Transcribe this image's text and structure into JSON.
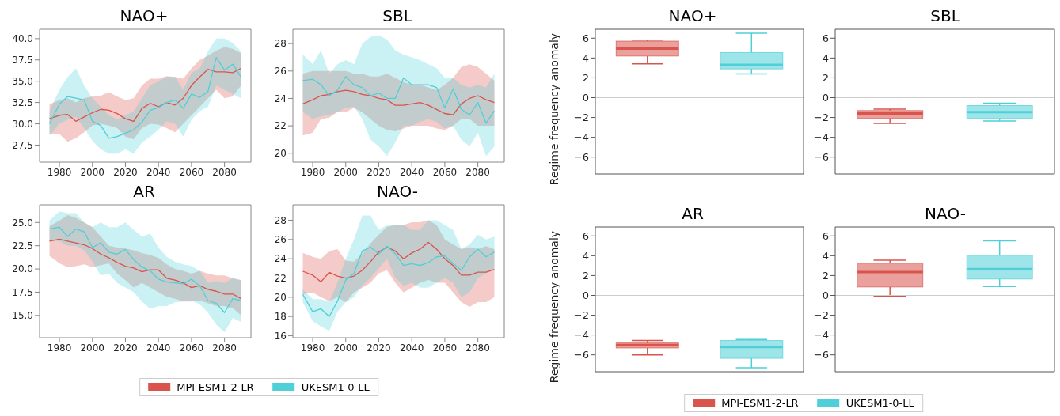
{
  "chart_data": [
    {
      "type": "line",
      "title": "NAO+",
      "x": [
        1974,
        1980,
        1985,
        1990,
        1995,
        2000,
        2005,
        2010,
        2015,
        2020,
        2025,
        2030,
        2035,
        2040,
        2045,
        2050,
        2055,
        2060,
        2065,
        2070,
        2075,
        2080,
        2085,
        2090
      ],
      "xlim": [
        1968,
        2096
      ],
      "xticks": [
        1980,
        2000,
        2020,
        2040,
        2060,
        2080
      ],
      "ylim": [
        25.5,
        41.1
      ],
      "yticks": [
        {
          "value": 27.5,
          "label": "27.5"
        },
        {
          "value": 30,
          "label": "30.0"
        },
        {
          "value": 32.5,
          "label": "32.5"
        },
        {
          "value": 35,
          "label": "35.0"
        },
        {
          "value": 37.5,
          "label": "37.5"
        },
        {
          "value": 40,
          "label": "40.0"
        }
      ],
      "series": [
        {
          "color": "#d9544d",
          "values": [
            30.6,
            31.0,
            31.1,
            30.3,
            30.8,
            31.3,
            31.7,
            31.6,
            31.2,
            30.6,
            30.3,
            31.8,
            32.4,
            32.0,
            32.5,
            32.2,
            33.0,
            34.5,
            35.5,
            36.4,
            36.1,
            36.1,
            36.0,
            36.5
          ],
          "lower": [
            28.8,
            28.8,
            27.9,
            28.3,
            29.0,
            29.8,
            30.0,
            29.8,
            29.5,
            28.5,
            28.2,
            29.5,
            30.0,
            29.9,
            29.5,
            29.0,
            30.0,
            31.0,
            32.0,
            33.0,
            34.0,
            33.0,
            33.2,
            34.5
          ],
          "upper": [
            32.3,
            32.8,
            33.0,
            32.5,
            33.0,
            33.2,
            33.3,
            33.7,
            33.2,
            32.8,
            33.0,
            34.5,
            35.3,
            35.3,
            35.6,
            35.5,
            35.3,
            36.5,
            37.5,
            38.0,
            38.6,
            39.0,
            38.8,
            38.3
          ]
        },
        {
          "color": "#4fcfd8",
          "values": [
            30.0,
            32.3,
            33.2,
            33.0,
            32.8,
            30.3,
            29.8,
            28.3,
            28.5,
            28.9,
            29.3,
            30.2,
            31.6,
            31.9,
            32.5,
            32.8,
            31.8,
            33.5,
            33.1,
            33.8,
            37.8,
            36.3,
            37.0,
            35.5
          ],
          "lower": [
            28.6,
            30.0,
            30.5,
            30.8,
            29.5,
            28.0,
            27.0,
            26.5,
            26.5,
            27.0,
            26.5,
            27.8,
            28.5,
            29.3,
            30.3,
            30.0,
            28.5,
            30.5,
            31.5,
            32.0,
            34.5,
            34.0,
            33.5,
            33.0
          ],
          "upper": [
            31.5,
            34.0,
            35.5,
            36.5,
            34.5,
            33.0,
            32.0,
            31.0,
            30.5,
            31.0,
            31.5,
            33.0,
            34.5,
            35.0,
            35.5,
            35.5,
            34.0,
            36.0,
            36.5,
            38.5,
            40.0,
            40.0,
            39.5,
            38.5
          ]
        }
      ]
    },
    {
      "type": "line",
      "title": "SBL",
      "x": [
        1974,
        1980,
        1985,
        1990,
        1995,
        2000,
        2005,
        2010,
        2015,
        2020,
        2025,
        2030,
        2035,
        2040,
        2045,
        2050,
        2055,
        2060,
        2065,
        2070,
        2075,
        2080,
        2085,
        2090
      ],
      "xlim": [
        1968,
        2096
      ],
      "xticks": [
        1980,
        2000,
        2020,
        2040,
        2060,
        2080
      ],
      "ylim": [
        19.35,
        29.05
      ],
      "yticks": [
        20,
        22,
        24,
        26,
        28
      ],
      "series": [
        {
          "color": "#d9544d",
          "values": [
            23.6,
            23.9,
            24.2,
            24.3,
            24.5,
            24.6,
            24.5,
            24.3,
            24.2,
            24.0,
            23.9,
            23.5,
            23.5,
            23.6,
            23.7,
            23.5,
            23.2,
            22.9,
            22.8,
            23.6,
            24.0,
            24.2,
            23.9,
            23.7
          ],
          "lower": [
            21.3,
            21.5,
            22.5,
            22.6,
            23.0,
            23.0,
            23.3,
            23.0,
            22.5,
            22.0,
            21.7,
            21.6,
            21.8,
            22.0,
            22.0,
            22.0,
            21.8,
            21.7,
            22.0,
            22.5,
            22.5,
            22.0,
            22.0,
            22.0
          ],
          "upper": [
            25.8,
            26.0,
            26.0,
            26.0,
            26.0,
            26.0,
            25.8,
            25.8,
            25.6,
            25.6,
            25.8,
            25.5,
            25.2,
            25.0,
            25.0,
            24.8,
            24.6,
            25.0,
            25.5,
            26.3,
            26.5,
            26.3,
            25.8,
            25.3
          ]
        },
        {
          "color": "#4fcfd8",
          "values": [
            25.3,
            25.4,
            25.0,
            24.2,
            24.6,
            25.6,
            25.0,
            24.8,
            24.2,
            24.4,
            24.0,
            24.0,
            25.5,
            25.0,
            25.0,
            25.0,
            24.8,
            23.3,
            24.7,
            23.2,
            22.8,
            23.7,
            22.2,
            23.1
          ],
          "lower": [
            23.0,
            22.5,
            22.7,
            22.8,
            23.0,
            23.3,
            23.4,
            22.5,
            21.0,
            20.5,
            19.8,
            20.8,
            22.0,
            22.0,
            22.3,
            22.5,
            22.3,
            21.8,
            22.0,
            21.0,
            20.5,
            21.5,
            19.8,
            20.5
          ],
          "upper": [
            27.2,
            26.5,
            27.5,
            25.8,
            26.5,
            26.8,
            26.5,
            28.0,
            28.5,
            28.6,
            28.3,
            27.5,
            27.2,
            27.0,
            26.8,
            26.5,
            26.2,
            25.5,
            25.5,
            25.0,
            24.8,
            25.0,
            24.8,
            25.8
          ]
        }
      ]
    },
    {
      "type": "line",
      "title": "AR",
      "legend": "bottom",
      "x": [
        1974,
        1980,
        1985,
        1990,
        1995,
        2000,
        2005,
        2010,
        2015,
        2020,
        2025,
        2030,
        2035,
        2040,
        2045,
        2050,
        2055,
        2060,
        2065,
        2070,
        2075,
        2080,
        2085,
        2090
      ],
      "xlim": [
        1968,
        2096
      ],
      "xticks": [
        1980,
        2000,
        2020,
        2040,
        2060,
        2080
      ],
      "ylim": [
        12.6,
        26.9
      ],
      "yticks": [
        {
          "value": 15,
          "label": "15.0"
        },
        {
          "value": 17.5,
          "label": "17.5"
        },
        {
          "value": 20,
          "label": "20.0"
        },
        {
          "value": 22.5,
          "label": "22.5"
        },
        {
          "value": 25,
          "label": "25.0"
        }
      ],
      "series": [
        {
          "name": "MPI-ESM1-2-LR",
          "color": "#d9544d",
          "values": [
            23.0,
            23.2,
            23.0,
            22.8,
            22.6,
            22.2,
            21.6,
            21.2,
            20.7,
            20.3,
            20.1,
            19.7,
            19.9,
            19.9,
            19.0,
            18.8,
            18.5,
            18.0,
            18.2,
            17.8,
            17.6,
            17.3,
            17.3,
            16.8
          ],
          "lower": [
            21.4,
            20.6,
            20.2,
            20.3,
            20.5,
            20.2,
            20.4,
            20.6,
            19.5,
            18.8,
            18.0,
            18.5,
            18.0,
            17.5,
            17.0,
            16.8,
            16.5,
            16.5,
            16.6,
            16.3,
            16.0,
            16.0,
            15.8,
            15.0
          ],
          "upper": [
            24.6,
            25.2,
            25.8,
            25.5,
            25.0,
            24.5,
            23.5,
            22.5,
            22.3,
            22.2,
            22.0,
            21.7,
            21.5,
            21.2,
            20.5,
            20.0,
            19.8,
            19.5,
            19.8,
            19.5,
            19.3,
            19.3,
            19.0,
            18.8
          ]
        },
        {
          "name": "UKESM1-0-LL",
          "color": "#4fcfd8",
          "values": [
            24.3,
            24.5,
            23.5,
            24.3,
            24.0,
            22.3,
            22.8,
            21.8,
            21.6,
            22.1,
            21.0,
            20.2,
            19.8,
            18.9,
            18.6,
            18.5,
            18.4,
            18.9,
            18.2,
            16.6,
            16.3,
            15.3,
            16.8,
            16.6
          ],
          "lower": [
            23.0,
            23.0,
            22.5,
            22.5,
            22.0,
            20.8,
            19.3,
            19.5,
            18.5,
            18.0,
            17.5,
            16.5,
            15.7,
            16.0,
            16.0,
            16.4,
            16.5,
            16.6,
            16.2,
            15.3,
            14.0,
            13.2,
            14.7,
            14.3
          ],
          "upper": [
            25.2,
            26.2,
            26.0,
            26.0,
            25.0,
            24.5,
            25.0,
            24.5,
            24.5,
            25.0,
            24.2,
            23.5,
            23.8,
            22.3,
            21.3,
            20.8,
            20.5,
            20.3,
            19.8,
            18.5,
            18.7,
            18.5,
            19.0,
            18.8
          ]
        }
      ]
    },
    {
      "type": "line",
      "title": "NAO-",
      "x": [
        1974,
        1980,
        1985,
        1990,
        1995,
        2000,
        2005,
        2010,
        2015,
        2020,
        2025,
        2030,
        2035,
        2040,
        2045,
        2050,
        2055,
        2060,
        2065,
        2070,
        2075,
        2080,
        2085,
        2090
      ],
      "xlim": [
        1968,
        2096
      ],
      "xticks": [
        1980,
        2000,
        2020,
        2040,
        2060,
        2080
      ],
      "ylim": [
        15.8,
        29.6
      ],
      "yticks": [
        16,
        18,
        20,
        22,
        24,
        26,
        28
      ],
      "series": [
        {
          "color": "#d9544d",
          "values": [
            22.7,
            22.3,
            21.6,
            22.6,
            22.2,
            22.0,
            22.2,
            22.8,
            23.7,
            24.7,
            25.2,
            24.8,
            24.0,
            24.6,
            25.0,
            25.7,
            25.0,
            24.0,
            23.3,
            22.3,
            22.3,
            22.6,
            22.6,
            22.9
          ],
          "lower": [
            20.3,
            20.5,
            20.0,
            19.6,
            20.0,
            19.5,
            20.5,
            21.0,
            21.5,
            22.5,
            22.8,
            21.5,
            20.5,
            21.0,
            21.5,
            21.8,
            21.5,
            21.5,
            20.5,
            19.5,
            19.0,
            19.5,
            19.5,
            20.0
          ],
          "upper": [
            24.6,
            24.2,
            24.0,
            24.8,
            25.0,
            23.8,
            23.7,
            24.5,
            25.6,
            26.5,
            27.3,
            27.5,
            27.5,
            27.8,
            27.8,
            28.0,
            27.5,
            26.0,
            25.5,
            25.0,
            25.2,
            25.0,
            25.3,
            25.0
          ]
        },
        {
          "color": "#4fcfd8",
          "values": [
            20.3,
            18.5,
            18.8,
            18.0,
            19.6,
            21.8,
            22.5,
            24.8,
            25.2,
            24.5,
            25.3,
            24.5,
            23.3,
            23.5,
            23.3,
            23.6,
            24.2,
            24.3,
            23.5,
            22.8,
            24.2,
            25.0,
            24.2,
            24.7
          ],
          "lower": [
            19.5,
            17.5,
            17.0,
            16.5,
            18.5,
            19.5,
            20.0,
            21.2,
            22.0,
            23.0,
            24.0,
            22.0,
            21.2,
            21.5,
            21.0,
            21.0,
            21.5,
            22.0,
            21.5,
            20.0,
            20.5,
            22.0,
            22.5,
            23.0
          ],
          "upper": [
            20.8,
            19.8,
            19.8,
            19.5,
            21.5,
            24.0,
            26.0,
            28.5,
            28.5,
            27.0,
            27.5,
            27.5,
            27.5,
            27.0,
            27.0,
            28.0,
            28.0,
            27.5,
            27.0,
            25.0,
            25.5,
            26.5,
            26.0,
            26.3
          ]
        }
      ]
    },
    {
      "type": "box",
      "title": "NAO+",
      "ylabel": "Regime frequency anomaly",
      "categories": [
        null,
        null
      ],
      "ylim": [
        -7.7,
        6.9
      ],
      "yticks": [
        {
          "value": -6,
          "label": "−6"
        },
        {
          "value": -4,
          "label": "−4"
        },
        {
          "value": -2,
          "label": "−2"
        },
        0,
        2,
        4,
        6
      ],
      "ref_lines": [
        {
          "axis": "y",
          "value": 0,
          "color": "#cccccc"
        }
      ],
      "series": [
        {
          "color": "#d9544d",
          "boxes": [
            {
              "low": 3.4,
              "q1": 4.2,
              "median": 4.95,
              "q3": 5.7,
              "high": 5.8
            },
            null
          ]
        },
        {
          "color": "#4fcfd8",
          "boxes": [
            null,
            {
              "low": 2.4,
              "q1": 2.9,
              "median": 3.3,
              "q3": 4.55,
              "high": 6.5
            }
          ]
        }
      ]
    },
    {
      "type": "box",
      "title": "SBL",
      "categories": [
        null,
        null
      ],
      "ylim": [
        -7.7,
        6.9
      ],
      "yticks": [
        {
          "value": -6,
          "label": "−6"
        },
        {
          "value": -4,
          "label": "−4"
        },
        {
          "value": -2,
          "label": "−2"
        },
        0,
        2,
        4,
        6
      ],
      "ref_lines": [
        {
          "axis": "y",
          "value": 0,
          "color": "#cccccc"
        }
      ],
      "series": [
        {
          "color": "#d9544d",
          "boxes": [
            {
              "low": -2.6,
              "q1": -2.1,
              "median": -1.6,
              "q3": -1.3,
              "high": -1.15
            },
            null
          ]
        },
        {
          "color": "#4fcfd8",
          "boxes": [
            null,
            {
              "low": -2.35,
              "q1": -2.1,
              "median": -1.45,
              "q3": -0.8,
              "high": -0.55
            }
          ]
        }
      ]
    },
    {
      "type": "box",
      "title": "AR",
      "ylabel": "Regime frequency anomaly",
      "legend": "bottom",
      "categories": [
        null,
        null
      ],
      "ylim": [
        -7.7,
        6.9
      ],
      "yticks": [
        {
          "value": -6,
          "label": "−6"
        },
        {
          "value": -4,
          "label": "−4"
        },
        {
          "value": -2,
          "label": "−2"
        },
        0,
        2,
        4,
        6
      ],
      "ref_lines": [
        {
          "axis": "y",
          "value": 0,
          "color": "#cccccc"
        }
      ],
      "series": [
        {
          "name": "MPI-ESM1-2-LR",
          "color": "#d9544d",
          "boxes": [
            {
              "low": -6.0,
              "q1": -5.3,
              "median": -5.0,
              "q3": -4.8,
              "high": -4.55
            },
            null
          ]
        },
        {
          "name": "UKESM1-0-LL",
          "color": "#4fcfd8",
          "boxes": [
            null,
            {
              "low": -7.3,
              "q1": -6.35,
              "median": -5.2,
              "q3": -4.55,
              "high": -4.45
            }
          ]
        }
      ]
    },
    {
      "type": "box",
      "title": "NAO-",
      "categories": [
        null,
        null
      ],
      "ylim": [
        -7.7,
        6.9
      ],
      "yticks": [
        {
          "value": -6,
          "label": "−6"
        },
        {
          "value": -4,
          "label": "−4"
        },
        {
          "value": -2,
          "label": "−2"
        },
        0,
        2,
        4,
        6
      ],
      "ref_lines": [
        {
          "axis": "y",
          "value": 0,
          "color": "#cccccc"
        }
      ],
      "series": [
        {
          "color": "#d9544d",
          "boxes": [
            {
              "low": -0.1,
              "q1": 0.85,
              "median": 2.35,
              "q3": 3.25,
              "high": 3.55
            },
            null
          ]
        },
        {
          "color": "#4fcfd8",
          "boxes": [
            null,
            {
              "low": 0.9,
              "q1": 1.65,
              "median": 2.65,
              "q3": 4.05,
              "high": 5.5
            }
          ]
        }
      ]
    }
  ]
}
